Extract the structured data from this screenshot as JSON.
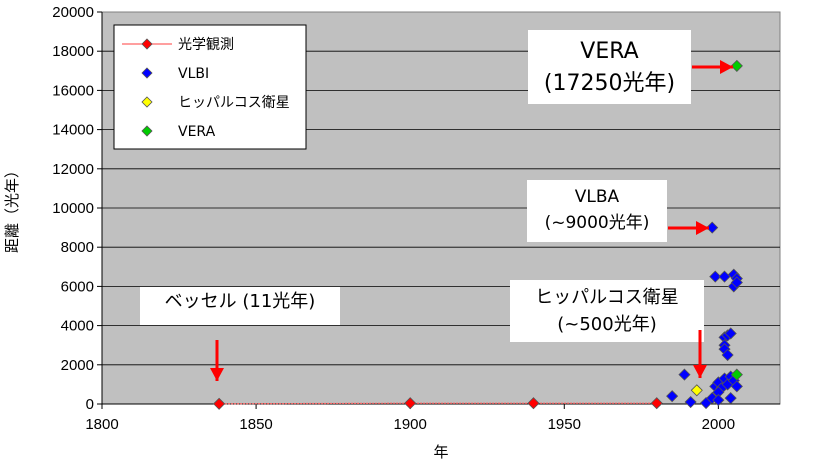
{
  "chart_data": {
    "type": "scatter",
    "xlabel": "年",
    "ylabel": "距離（光年）",
    "xlim": [
      1800,
      2020
    ],
    "ylim": [
      0,
      20000
    ],
    "xticks": [
      1800,
      1850,
      1900,
      1950,
      2000
    ],
    "yticks": [
      0,
      2000,
      4000,
      6000,
      8000,
      10000,
      12000,
      14000,
      16000,
      18000,
      20000
    ],
    "grid": "horizontal",
    "legend_position": "top-left",
    "series": [
      {
        "name": "光学観測",
        "marker": "diamond",
        "line": true,
        "color": "#ff0000",
        "points": [
          [
            1838,
            11
          ],
          [
            1900,
            40
          ],
          [
            1940,
            40
          ],
          [
            1980,
            40
          ]
        ]
      },
      {
        "name": "VLBI",
        "marker": "diamond",
        "line": false,
        "color": "#0000ff",
        "points": [
          [
            1985,
            400
          ],
          [
            1989,
            1500
          ],
          [
            1991,
            100
          ],
          [
            1996,
            50
          ],
          [
            1998,
            300
          ],
          [
            1999,
            900
          ],
          [
            2000,
            1100
          ],
          [
            2001,
            800
          ],
          [
            2002,
            1300
          ],
          [
            2003,
            1000
          ],
          [
            2004,
            1400
          ],
          [
            2005,
            1200
          ],
          [
            2006,
            900
          ],
          [
            2000,
            600
          ],
          [
            2004,
            300
          ],
          [
            1998,
            9000
          ],
          [
            1999,
            6500
          ],
          [
            2002,
            6500
          ],
          [
            2005,
            6600
          ],
          [
            2006,
            6400
          ],
          [
            2005,
            6000
          ],
          [
            2006,
            6200
          ],
          [
            2002,
            3400
          ],
          [
            2003,
            3500
          ],
          [
            2004,
            3600
          ],
          [
            2002,
            3000
          ],
          [
            2002,
            2800
          ],
          [
            2003,
            2500
          ],
          [
            2000,
            200
          ]
        ]
      },
      {
        "name": "ヒッパルコス衛星",
        "marker": "diamond",
        "line": false,
        "color": "#ffff00",
        "points": [
          [
            1993,
            700
          ]
        ]
      },
      {
        "name": "VERA",
        "marker": "diamond",
        "line": false,
        "color": "#00cc00",
        "points": [
          [
            2006,
            17250
          ],
          [
            2006,
            1500
          ]
        ]
      }
    ],
    "annotations": [
      {
        "id": "bessel",
        "lines": [
          "ベッセル (11光年)"
        ],
        "color": "#000000"
      },
      {
        "id": "hipparcos",
        "lines": [
          "ヒッパルコス衛星",
          "(~500光年)"
        ],
        "color": "#000000"
      },
      {
        "id": "vlba",
        "lines": [
          "VLBA",
          "(~9000光年)"
        ],
        "color": "#000000"
      },
      {
        "id": "vera",
        "lines": [
          "VERA",
          "(17250光年)"
        ],
        "color": "#ff0000"
      }
    ]
  }
}
